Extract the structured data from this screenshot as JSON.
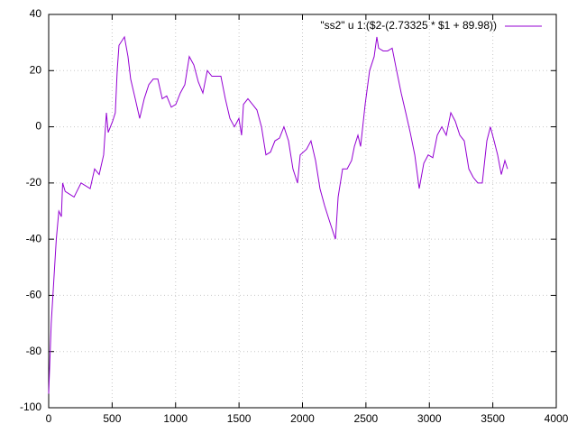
{
  "chart_data": {
    "type": "line",
    "series": [
      {
        "name": "\"ss2\" u 1:($2-(2.73325 * $1 + 89.98))",
        "color": "#9400d3",
        "x": [
          0,
          20,
          40,
          60,
          80,
          100,
          110,
          130,
          200,
          255,
          327,
          362,
          398,
          433,
          455,
          469,
          504,
          525,
          540,
          554,
          597,
          625,
          646,
          682,
          717,
          753,
          789,
          824,
          860,
          895,
          930,
          966,
          1002,
          1037,
          1073,
          1108,
          1144,
          1179,
          1215,
          1250,
          1286,
          1322,
          1357,
          1392,
          1428,
          1464,
          1499,
          1520,
          1535,
          1570,
          1606,
          1641,
          1677,
          1712,
          1748,
          1783,
          1819,
          1854,
          1890,
          1925,
          1961,
          1982,
          2032,
          2067,
          2103,
          2138,
          2174,
          2209,
          2245,
          2260,
          2281,
          2316,
          2352,
          2387,
          2409,
          2437,
          2458,
          2494,
          2529,
          2565,
          2586,
          2600,
          2636,
          2671,
          2707,
          2742,
          2778,
          2814,
          2849,
          2885,
          2920,
          2956,
          2991,
          3027,
          3062,
          3098,
          3133,
          3169,
          3204,
          3240,
          3275,
          3311,
          3346,
          3382,
          3417,
          3453,
          3481,
          3510,
          3538,
          3567,
          3595,
          3616
        ],
        "values": [
          -95,
          -70,
          -55,
          -40,
          -30,
          -32,
          -20,
          -23,
          -25,
          -20,
          -22,
          -15,
          -17,
          -10,
          5,
          -2,
          2,
          5,
          20,
          29,
          32,
          25,
          17,
          10,
          3,
          10,
          15,
          17,
          17,
          10,
          11,
          7,
          8,
          12,
          15,
          25,
          22,
          16,
          12,
          20,
          18,
          18,
          18,
          10,
          3,
          0,
          3,
          -3,
          8,
          10,
          8,
          6,
          0,
          -10,
          -9,
          -5,
          -4,
          0,
          -5,
          -15,
          -20,
          -10,
          -8,
          -5,
          -12,
          -22,
          -28,
          -33,
          -38,
          -40,
          -25,
          -15,
          -15,
          -12,
          -7,
          -3,
          -7,
          8,
          20,
          25,
          32,
          28,
          27,
          27,
          28,
          20,
          12,
          5,
          -2,
          -10,
          -22,
          -13,
          -10,
          -11,
          -3,
          0,
          -3,
          5,
          2,
          -3,
          -5,
          -15,
          -18,
          -20,
          -20,
          -5,
          0,
          -5,
          -10,
          -17,
          -12,
          -15
        ]
      }
    ],
    "xlim": [
      0,
      4000
    ],
    "xticks": [
      0,
      500,
      1000,
      1500,
      2000,
      2500,
      3000,
      3500,
      4000
    ],
    "ylim": [
      -100,
      40
    ],
    "yticks": [
      -100,
      -80,
      -60,
      -40,
      -20,
      0,
      20,
      40
    ],
    "grid": true,
    "legend": "top-right"
  }
}
